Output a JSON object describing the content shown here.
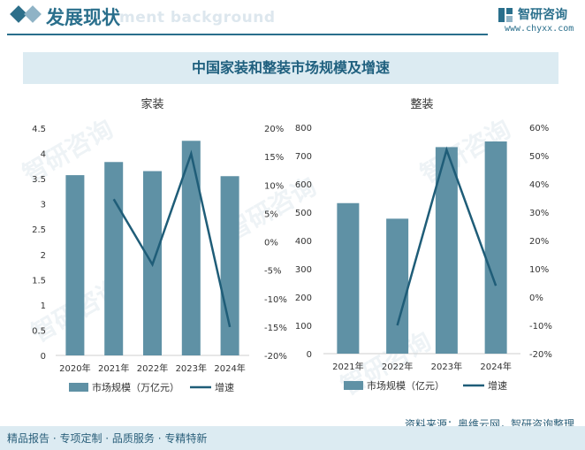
{
  "header": {
    "title": "发展现状",
    "watermark": "ment background",
    "logo_text": "智研咨询",
    "logo_url": "www.chyxx.com"
  },
  "main_title": "中国家装和整装市场规模及增速",
  "footer": {
    "left": "精品报告 · 专项定制 · 品质服务 · 专精特新",
    "source": "资料来源：奥维云网，智研咨询整理"
  },
  "watermark_text": "智研咨询",
  "colors": {
    "bar": "#5f91a5",
    "line": "#1f5d78",
    "accent": "#2a6f8c"
  },
  "chart_data": [
    {
      "type": "bar",
      "title": "家装",
      "categories": [
        "2020年",
        "2021年",
        "2022年",
        "2023年",
        "2024年"
      ],
      "series": [
        {
          "name": "市场规模（万亿元）",
          "type": "bar",
          "axis": "left",
          "values": [
            3.57,
            3.83,
            3.65,
            4.25,
            3.55
          ]
        },
        {
          "name": "增速",
          "type": "line",
          "axis": "right",
          "values": [
            null,
            7.5,
            -4.0,
            15.5,
            -15.0
          ]
        }
      ],
      "y_left": {
        "min": 0,
        "max": 4.5,
        "ticks": [
          "0",
          "0.5",
          "1",
          "1.5",
          "2",
          "2.5",
          "3",
          "3.5",
          "4",
          "4.5"
        ]
      },
      "y_right": {
        "min": -20,
        "max": 20,
        "ticks": [
          "-20%",
          "-15%",
          "-10%",
          "-5%",
          "0%",
          "5%",
          "10%",
          "15%",
          "20%"
        ]
      },
      "legend": "bottom",
      "grid": false
    },
    {
      "type": "bar",
      "title": "整装",
      "categories": [
        "2021年",
        "2022年",
        "2023年",
        "2024年"
      ],
      "series": [
        {
          "name": "市场规模（亿元）",
          "type": "bar",
          "axis": "left",
          "values": [
            532,
            477,
            730,
            750
          ]
        },
        {
          "name": "增速",
          "type": "line",
          "axis": "right",
          "values": [
            null,
            -10.0,
            52.0,
            4.0
          ]
        }
      ],
      "y_left": {
        "min": 0,
        "max": 800,
        "ticks": [
          "0",
          "100",
          "200",
          "300",
          "400",
          "500",
          "600",
          "700",
          "800"
        ]
      },
      "y_right": {
        "min": -20,
        "max": 60,
        "ticks": [
          "-20%",
          "-10%",
          "0%",
          "10%",
          "20%",
          "30%",
          "40%",
          "50%",
          "60%"
        ]
      },
      "legend": "bottom",
      "grid": false
    }
  ]
}
